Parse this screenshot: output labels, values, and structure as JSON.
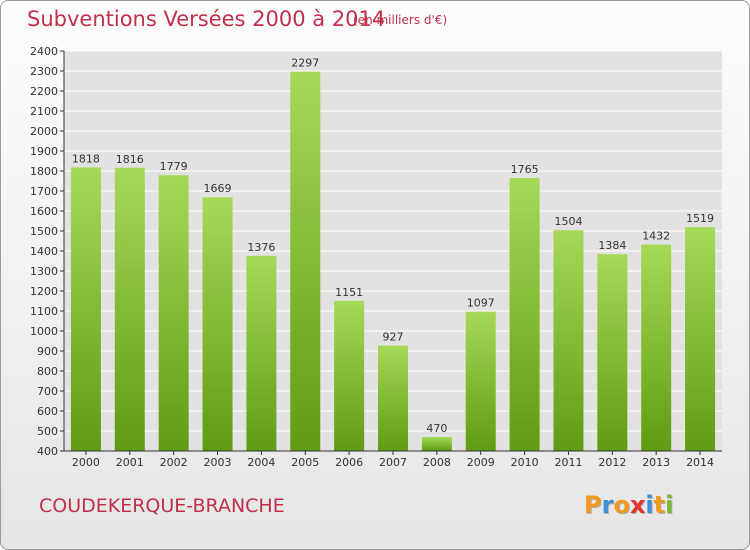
{
  "header": {
    "title": "Subventions Versées 2000 à 2014",
    "subtitle": "(en milliers d'€)"
  },
  "footer": {
    "commune": "COUDEKERQUE-BRANCHE",
    "logo": {
      "letters": [
        "P",
        "r",
        "o",
        "x",
        "i",
        "t",
        "i"
      ],
      "colors": [
        "#f39a1e",
        "#3d8fd6",
        "#f39a1e",
        "#e3342f",
        "#3d8fd6",
        "#f39a1e",
        "#7cb82f"
      ]
    }
  },
  "chart_data": {
    "type": "bar",
    "categories": [
      "2000",
      "2001",
      "2002",
      "2003",
      "2004",
      "2005",
      "2006",
      "2007",
      "2008",
      "2009",
      "2010",
      "2011",
      "2012",
      "2013",
      "2014"
    ],
    "values": [
      1818,
      1816,
      1779,
      1669,
      1376,
      2297,
      1151,
      927,
      470,
      1097,
      1765,
      1504,
      1384,
      1432,
      1519
    ],
    "ylim": [
      400,
      2400
    ],
    "yticks": [
      400,
      500,
      600,
      700,
      800,
      900,
      1000,
      1100,
      1200,
      1300,
      1400,
      1500,
      1600,
      1700,
      1800,
      1900,
      2000,
      2100,
      2200,
      2300,
      2400
    ],
    "grid": true,
    "colors": {
      "bar_light": "#a6d957",
      "bar_dark": "#5f9c12",
      "grid": "#ffffff",
      "plot_bg": "#e2e2e2",
      "axis": "#333333"
    }
  }
}
